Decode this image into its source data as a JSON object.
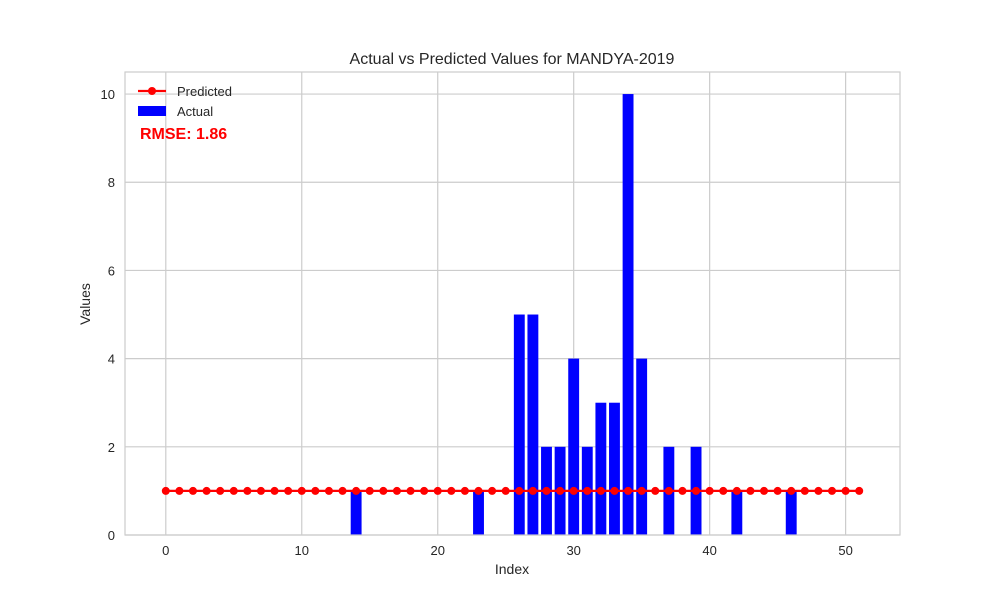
{
  "chart_data": {
    "type": "bar",
    "title": "Actual vs Predicted Values for MANDYA-2019",
    "xlabel": "Index",
    "ylabel": "Values",
    "xlim": [
      -3,
      54
    ],
    "ylim": [
      0,
      10.5
    ],
    "xticks": [
      0,
      10,
      20,
      30,
      40,
      50
    ],
    "yticks": [
      0,
      2,
      4,
      6,
      8,
      10
    ],
    "grid": true,
    "legend_position": "top-left",
    "annotation": "RMSE: 1.86",
    "annotation_color": "#ff0000",
    "x": [
      0,
      1,
      2,
      3,
      4,
      5,
      6,
      7,
      8,
      9,
      10,
      11,
      12,
      13,
      14,
      15,
      16,
      17,
      18,
      19,
      20,
      21,
      22,
      23,
      24,
      25,
      26,
      27,
      28,
      29,
      30,
      31,
      32,
      33,
      34,
      35,
      36,
      37,
      38,
      39,
      40,
      41,
      42,
      43,
      44,
      45,
      46,
      47,
      48,
      49,
      50,
      51
    ],
    "series": [
      {
        "name": "Actual",
        "kind": "bar",
        "color": "#0000ff",
        "values": [
          0,
          0,
          0,
          0,
          0,
          0,
          0,
          0,
          0,
          0,
          0,
          0,
          0,
          0,
          1,
          0,
          0,
          0,
          0,
          0,
          0,
          0,
          0,
          1,
          0,
          0,
          5,
          5,
          2,
          2,
          4,
          2,
          3,
          3,
          10,
          4,
          0,
          2,
          0,
          2,
          0,
          0,
          1,
          0,
          0,
          0,
          1,
          0,
          0,
          0,
          0,
          0
        ]
      },
      {
        "name": "Predicted",
        "kind": "line",
        "color": "#ff0000",
        "values": [
          1,
          1,
          1,
          1,
          1,
          1,
          1,
          1,
          1,
          1,
          1,
          1,
          1,
          1,
          1,
          1,
          1,
          1,
          1,
          1,
          1,
          1,
          1,
          1,
          1,
          1,
          1,
          1,
          1,
          1,
          1,
          1,
          1,
          1,
          1,
          1,
          1,
          1,
          1,
          1,
          1,
          1,
          1,
          1,
          1,
          1,
          1,
          1,
          1,
          1,
          1,
          1
        ]
      }
    ]
  }
}
